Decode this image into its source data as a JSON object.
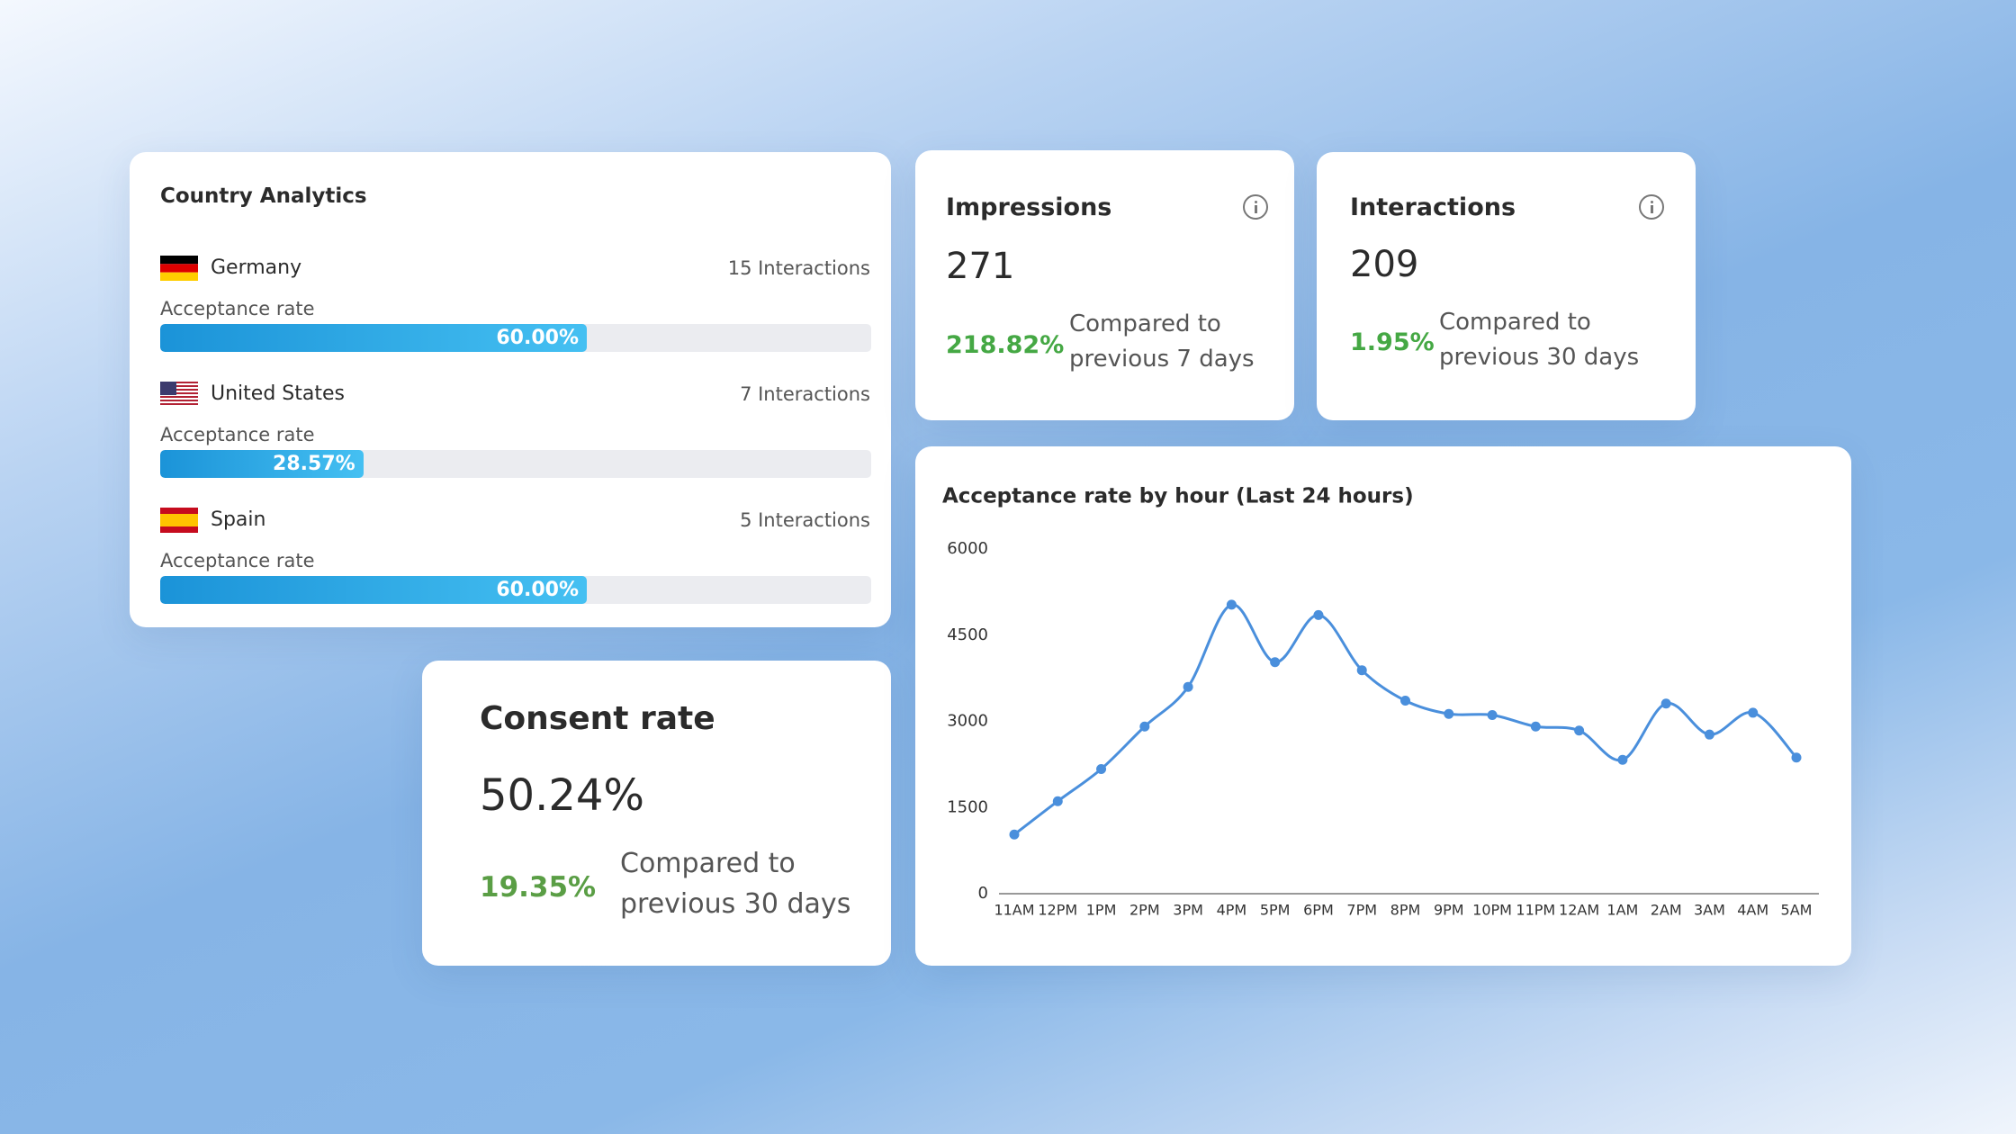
{
  "country_analytics": {
    "title": "Country Analytics",
    "rows": [
      {
        "country": "Germany",
        "interactions": "15 Interactions",
        "label": "Acceptance rate",
        "rate": 60,
        "rate_label": "60.00%"
      },
      {
        "country": "United States",
        "interactions": "7 Interactions",
        "label": "Acceptance rate",
        "rate": 28.57,
        "rate_label": "28.57%"
      },
      {
        "country": "Spain",
        "interactions": "5 Interactions",
        "label": "Acceptance rate",
        "rate": 60,
        "rate_label": "60.00%"
      }
    ]
  },
  "impressions": {
    "title": "Impressions",
    "value": 271,
    "change": "218.82%",
    "compare": "Compared to previous 7 days"
  },
  "interactions": {
    "title": "Interactions",
    "value": 209,
    "change": "1.95%",
    "compare": "Compared to previous 30 days"
  },
  "consent_rate": {
    "title": "Consent rate",
    "value": "50.24%",
    "change": "19.35%",
    "compare": "Compared to previous 30 days"
  },
  "chart_data": {
    "type": "line",
    "title": "Acceptance rate by hour (Last 24 hours)",
    "categories": [
      "11AM",
      "12PM",
      "1PM",
      "2PM",
      "3PM",
      "4PM",
      "5PM",
      "6PM",
      "7PM",
      "8PM",
      "9PM",
      "10PM",
      "11PM",
      "12AM",
      "1AM",
      "2AM",
      "3AM",
      "4AM",
      "5AM"
    ],
    "series": [
      {
        "color": "#4a8fdc",
        "values": [
          1030,
          1610,
          2170,
          2910,
          3600,
          5030,
          4030,
          4850,
          3890,
          3360,
          3130,
          3110,
          2910,
          2840,
          2330,
          3310,
          2770,
          3150,
          2370
        ]
      }
    ],
    "ylim": [
      0,
      6000
    ],
    "yticks": [
      0,
      1500,
      3000,
      4500,
      6000
    ],
    "grid": false
  }
}
